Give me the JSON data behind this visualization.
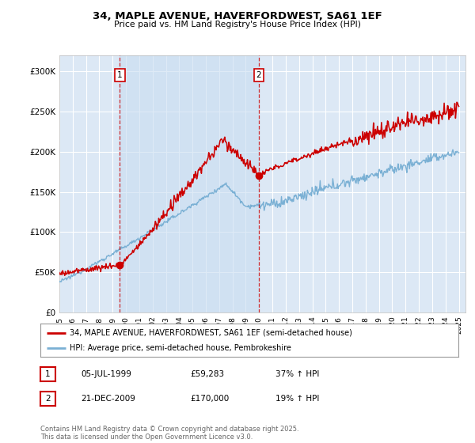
{
  "title_line1": "34, MAPLE AVENUE, HAVERFORDWEST, SA61 1EF",
  "title_line2": "Price paid vs. HM Land Registry's House Price Index (HPI)",
  "background_color": "#ffffff",
  "plot_bg_color": "#dce8f5",
  "grid_color": "#ffffff",
  "shade_color": "#c8ddf0",
  "sale1_date_num": 1999.54,
  "sale1_label": "1",
  "sale1_price": 59283,
  "sale1_date_str": "05-JUL-1999",
  "sale1_hpi_str": "37% ↑ HPI",
  "sale2_date_num": 2009.97,
  "sale2_label": "2",
  "sale2_price": 170000,
  "sale2_date_str": "21-DEC-2009",
  "sale2_hpi_str": "19% ↑ HPI",
  "red_color": "#cc0000",
  "blue_color": "#7ab0d4",
  "ylim_max": 320000,
  "yticks": [
    0,
    50000,
    100000,
    150000,
    200000,
    250000,
    300000
  ],
  "ytick_labels": [
    "£0",
    "£50K",
    "£100K",
    "£150K",
    "£200K",
    "£250K",
    "£300K"
  ],
  "legend_line1": "34, MAPLE AVENUE, HAVERFORDWEST, SA61 1EF (semi-detached house)",
  "legend_line2": "HPI: Average price, semi-detached house, Pembrokeshire",
  "footer": "Contains HM Land Registry data © Crown copyright and database right 2025.\nThis data is licensed under the Open Government Licence v3.0.",
  "annotation_table": [
    [
      "1",
      "05-JUL-1999",
      "£59,283",
      "37% ↑ HPI"
    ],
    [
      "2",
      "21-DEC-2009",
      "£170,000",
      "19% ↑ HPI"
    ]
  ]
}
